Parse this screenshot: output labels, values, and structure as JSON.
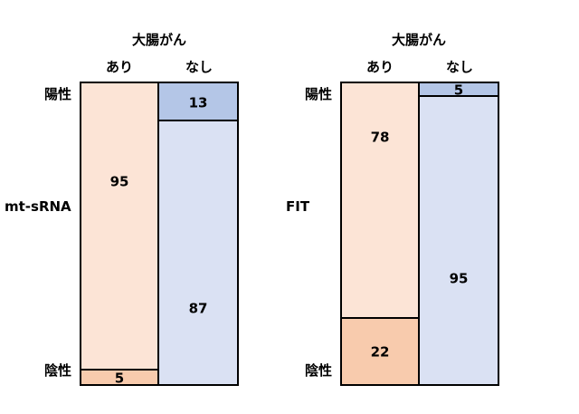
{
  "chart_data": [
    {
      "type": "mosaic",
      "test": "mt-sRNA",
      "header": "大腸がん",
      "columns": [
        "あり",
        "なし"
      ],
      "rows": [
        "陽性",
        "陰性"
      ],
      "counts": {
        "あり": {
          "陽性": 95,
          "陰性": 5
        },
        "なし": {
          "陽性": 13,
          "陰性": 87
        }
      },
      "colors": {
        "あり_陽性": "#fce4d6",
        "あり_陰性": "#f8cbad",
        "なし_陽性": "#b4c6e7",
        "なし_陰性": "#dae1f3"
      }
    },
    {
      "type": "mosaic",
      "test": "FIT",
      "header": "大腸がん",
      "columns": [
        "あり",
        "なし"
      ],
      "rows": [
        "陽性",
        "陰性"
      ],
      "counts": {
        "あり": {
          "陽性": 78,
          "陰性": 22
        },
        "なし": {
          "陽性": 5,
          "陰性": 95
        }
      },
      "colors": {
        "あり_陽性": "#fce4d6",
        "あり_陰性": "#f8cbad",
        "なし_陽性": "#b4c6e7",
        "なし_陰性": "#dae1f3"
      }
    }
  ]
}
